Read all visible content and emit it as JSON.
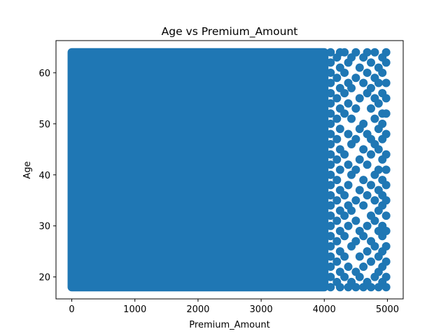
{
  "chart_data": {
    "type": "scatter",
    "title": "Age vs Premium_Amount",
    "xlabel": "Premium_Amount",
    "ylabel": "Age",
    "xlim": [
      -250,
      5250
    ],
    "ylim": [
      15.7,
      66.3
    ],
    "xticks": [
      0,
      1000,
      2000,
      3000,
      4000,
      5000
    ],
    "yticks": [
      20,
      30,
      40,
      50,
      60
    ],
    "marker_color": "#1f77b4",
    "grid": false,
    "legend": "none",
    "dense_region": {
      "description_points": "All integer ages 18-64 for premium amounts 0-4000 are densely filled",
      "x_range": [
        0,
        4000
      ],
      "y_range": [
        18,
        64
      ]
    },
    "points": [
      [
        4100,
        18
      ],
      [
        4100,
        20
      ],
      [
        4100,
        22
      ],
      [
        4100,
        24
      ],
      [
        4100,
        26
      ],
      [
        4100,
        28
      ],
      [
        4100,
        30
      ],
      [
        4100,
        32
      ],
      [
        4100,
        34
      ],
      [
        4100,
        36
      ],
      [
        4100,
        38
      ],
      [
        4100,
        40
      ],
      [
        4100,
        42
      ],
      [
        4100,
        44
      ],
      [
        4100,
        46
      ],
      [
        4100,
        48
      ],
      [
        4100,
        50
      ],
      [
        4100,
        52
      ],
      [
        4100,
        54
      ],
      [
        4100,
        56
      ],
      [
        4100,
        58
      ],
      [
        4100,
        60
      ],
      [
        4100,
        62
      ],
      [
        4100,
        64
      ],
      [
        4200,
        19
      ],
      [
        4200,
        23
      ],
      [
        4200,
        27
      ],
      [
        4200,
        31
      ],
      [
        4200,
        35
      ],
      [
        4200,
        39
      ],
      [
        4200,
        43
      ],
      [
        4200,
        47
      ],
      [
        4200,
        51
      ],
      [
        4200,
        55
      ],
      [
        4200,
        59
      ],
      [
        4200,
        63
      ],
      [
        4250,
        18
      ],
      [
        4250,
        21
      ],
      [
        4250,
        25
      ],
      [
        4250,
        29
      ],
      [
        4250,
        33
      ],
      [
        4250,
        37
      ],
      [
        4250,
        41
      ],
      [
        4250,
        45
      ],
      [
        4250,
        49
      ],
      [
        4250,
        53
      ],
      [
        4250,
        57
      ],
      [
        4250,
        61
      ],
      [
        4250,
        64
      ],
      [
        4320,
        20
      ],
      [
        4320,
        24
      ],
      [
        4320,
        28
      ],
      [
        4320,
        32
      ],
      [
        4320,
        36
      ],
      [
        4320,
        44
      ],
      [
        4320,
        52
      ],
      [
        4320,
        56
      ],
      [
        4320,
        60
      ],
      [
        4320,
        64
      ],
      [
        4380,
        18
      ],
      [
        4380,
        22
      ],
      [
        4380,
        30
      ],
      [
        4380,
        34
      ],
      [
        4380,
        38
      ],
      [
        4380,
        42
      ],
      [
        4380,
        48
      ],
      [
        4380,
        54
      ],
      [
        4380,
        58
      ],
      [
        4380,
        62
      ],
      [
        4430,
        19
      ],
      [
        4430,
        26
      ],
      [
        4430,
        33
      ],
      [
        4430,
        40
      ],
      [
        4430,
        46
      ],
      [
        4430,
        51
      ],
      [
        4430,
        57
      ],
      [
        4430,
        63
      ],
      [
        4500,
        18
      ],
      [
        4500,
        21
      ],
      [
        4500,
        27
      ],
      [
        4500,
        31
      ],
      [
        4500,
        35
      ],
      [
        4500,
        41
      ],
      [
        4500,
        47
      ],
      [
        4500,
        53
      ],
      [
        4500,
        59
      ],
      [
        4500,
        64
      ],
      [
        4560,
        20
      ],
      [
        4560,
        24
      ],
      [
        4560,
        29
      ],
      [
        4560,
        37
      ],
      [
        4560,
        43
      ],
      [
        4560,
        49
      ],
      [
        4560,
        55
      ],
      [
        4560,
        61
      ],
      [
        4620,
        18
      ],
      [
        4620,
        22
      ],
      [
        4620,
        28
      ],
      [
        4620,
        34
      ],
      [
        4620,
        39
      ],
      [
        4620,
        45
      ],
      [
        4620,
        50
      ],
      [
        4620,
        58
      ],
      [
        4620,
        63
      ],
      [
        4680,
        19
      ],
      [
        4680,
        25
      ],
      [
        4680,
        30
      ],
      [
        4680,
        36
      ],
      [
        4680,
        42
      ],
      [
        4680,
        48
      ],
      [
        4680,
        56
      ],
      [
        4680,
        60
      ],
      [
        4680,
        64
      ],
      [
        4740,
        18
      ],
      [
        4740,
        23
      ],
      [
        4740,
        27
      ],
      [
        4740,
        32
      ],
      [
        4740,
        38
      ],
      [
        4740,
        44
      ],
      [
        4740,
        47
      ],
      [
        4740,
        53
      ],
      [
        4740,
        57
      ],
      [
        4740,
        62
      ],
      [
        4800,
        20
      ],
      [
        4800,
        26
      ],
      [
        4800,
        31
      ],
      [
        4800,
        35
      ],
      [
        4800,
        40
      ],
      [
        4800,
        46
      ],
      [
        4800,
        51
      ],
      [
        4800,
        55
      ],
      [
        4800,
        59
      ],
      [
        4800,
        64
      ],
      [
        4860,
        18
      ],
      [
        4860,
        21
      ],
      [
        4860,
        24
      ],
      [
        4860,
        29
      ],
      [
        4860,
        33
      ],
      [
        4860,
        37
      ],
      [
        4860,
        41
      ],
      [
        4860,
        45
      ],
      [
        4860,
        49
      ],
      [
        4860,
        54
      ],
      [
        4860,
        58
      ],
      [
        4860,
        61
      ],
      [
        4920,
        19
      ],
      [
        4920,
        22
      ],
      [
        4920,
        25
      ],
      [
        4920,
        28
      ],
      [
        4920,
        30
      ],
      [
        4920,
        34
      ],
      [
        4920,
        36
      ],
      [
        4920,
        39
      ],
      [
        4920,
        43
      ],
      [
        4920,
        47
      ],
      [
        4920,
        50
      ],
      [
        4920,
        52
      ],
      [
        4920,
        56
      ],
      [
        4920,
        60
      ],
      [
        4920,
        63
      ],
      [
        4980,
        18
      ],
      [
        4980,
        20
      ],
      [
        4980,
        23
      ],
      [
        4980,
        26
      ],
      [
        4980,
        29
      ],
      [
        4980,
        32
      ],
      [
        4980,
        35
      ],
      [
        4980,
        38
      ],
      [
        4980,
        41
      ],
      [
        4980,
        44
      ],
      [
        4980,
        48
      ],
      [
        4980,
        52
      ],
      [
        4980,
        55
      ],
      [
        4980,
        58
      ],
      [
        4980,
        62
      ],
      [
        4980,
        64
      ]
    ]
  }
}
